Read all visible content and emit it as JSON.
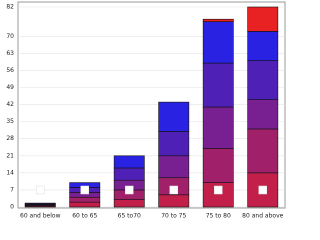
{
  "chart_data": {
    "type": "stacked-bar",
    "categories": [
      "60 and below",
      "60 to 65",
      "65 to70",
      "70 to 75",
      "75 to 80",
      "80 and above"
    ],
    "series": [
      {
        "color": "#c2204a",
        "values": [
          0.4,
          2,
          3,
          5,
          10,
          14
        ]
      },
      {
        "color": "#a0206a",
        "values": [
          0.3,
          2,
          4,
          7,
          14,
          18
        ]
      },
      {
        "color": "#782092",
        "values": [
          0.3,
          2,
          4,
          9,
          17,
          12
        ]
      },
      {
        "color": "#4e20b6",
        "values": [
          0.3,
          2,
          5,
          10,
          18,
          16
        ]
      },
      {
        "color": "#2a22e2",
        "values": [
          0.3,
          2,
          5,
          12,
          17,
          12
        ]
      },
      {
        "color": "#e82222",
        "values": [
          0,
          0,
          0,
          0,
          1,
          10
        ]
      }
    ],
    "ylim": [
      0,
      82
    ],
    "yticks": [
      0,
      7,
      14,
      21,
      28,
      35,
      42,
      49,
      56,
      63,
      70,
      82
    ],
    "grid": true
  }
}
